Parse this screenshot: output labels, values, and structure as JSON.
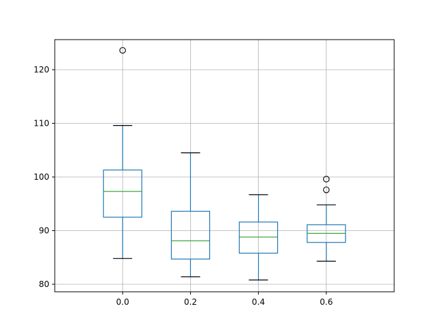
{
  "chart_data": {
    "type": "box",
    "title": "",
    "xlabel": "",
    "ylabel": "",
    "categories": [
      "0.0",
      "0.2",
      "0.4",
      "0.6"
    ],
    "ylim": [
      78.6,
      125.6
    ],
    "yticks": [
      80,
      90,
      100,
      110,
      120
    ],
    "grid": true,
    "boxes": [
      {
        "category": "0.0",
        "whisker_low": 84.8,
        "q1": 92.5,
        "median": 97.3,
        "q3": 101.3,
        "whisker_high": 109.6,
        "outliers": [
          123.6
        ]
      },
      {
        "category": "0.2",
        "whisker_low": 81.4,
        "q1": 84.7,
        "median": 88.1,
        "q3": 93.6,
        "whisker_high": 104.5,
        "outliers": []
      },
      {
        "category": "0.4",
        "whisker_low": 80.8,
        "q1": 85.8,
        "median": 88.8,
        "q3": 91.6,
        "whisker_high": 96.7,
        "outliers": []
      },
      {
        "category": "0.6",
        "whisker_low": 84.3,
        "q1": 87.8,
        "median": 89.5,
        "q3": 91.1,
        "whisker_high": 94.8,
        "outliers": [
          97.6,
          99.6
        ]
      }
    ],
    "colors": {
      "box": "#1f77b4",
      "median": "#2ca02c",
      "whisker_cap": "#000000",
      "outlier": "#000000",
      "grid": "#b0b0b0",
      "axes": "#000000"
    }
  }
}
